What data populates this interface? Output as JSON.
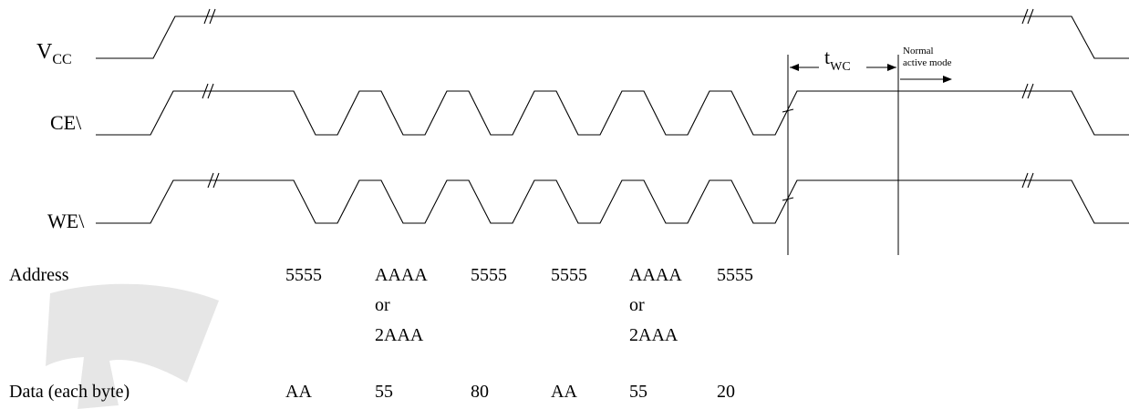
{
  "signals": {
    "vcc": {
      "name": "V",
      "sub": "CC"
    },
    "ce": {
      "name": "CE\\"
    },
    "we": {
      "name": "WE\\"
    }
  },
  "timing": {
    "twc": {
      "t": "t",
      "sub": "WC"
    },
    "normal_line1": "Normal",
    "normal_line2": "active mode"
  },
  "table": {
    "address_label": "Address",
    "data_label": "Data (each byte)",
    "address_values": [
      [
        "5555"
      ],
      [
        "AAAA",
        "or",
        "2AAA"
      ],
      [
        "5555"
      ],
      [
        "5555"
      ],
      [
        "AAAA",
        "or",
        "2AAA"
      ],
      [
        "5555"
      ]
    ],
    "data_values": [
      "AA",
      "55",
      "80",
      "AA",
      "55",
      "20"
    ]
  }
}
